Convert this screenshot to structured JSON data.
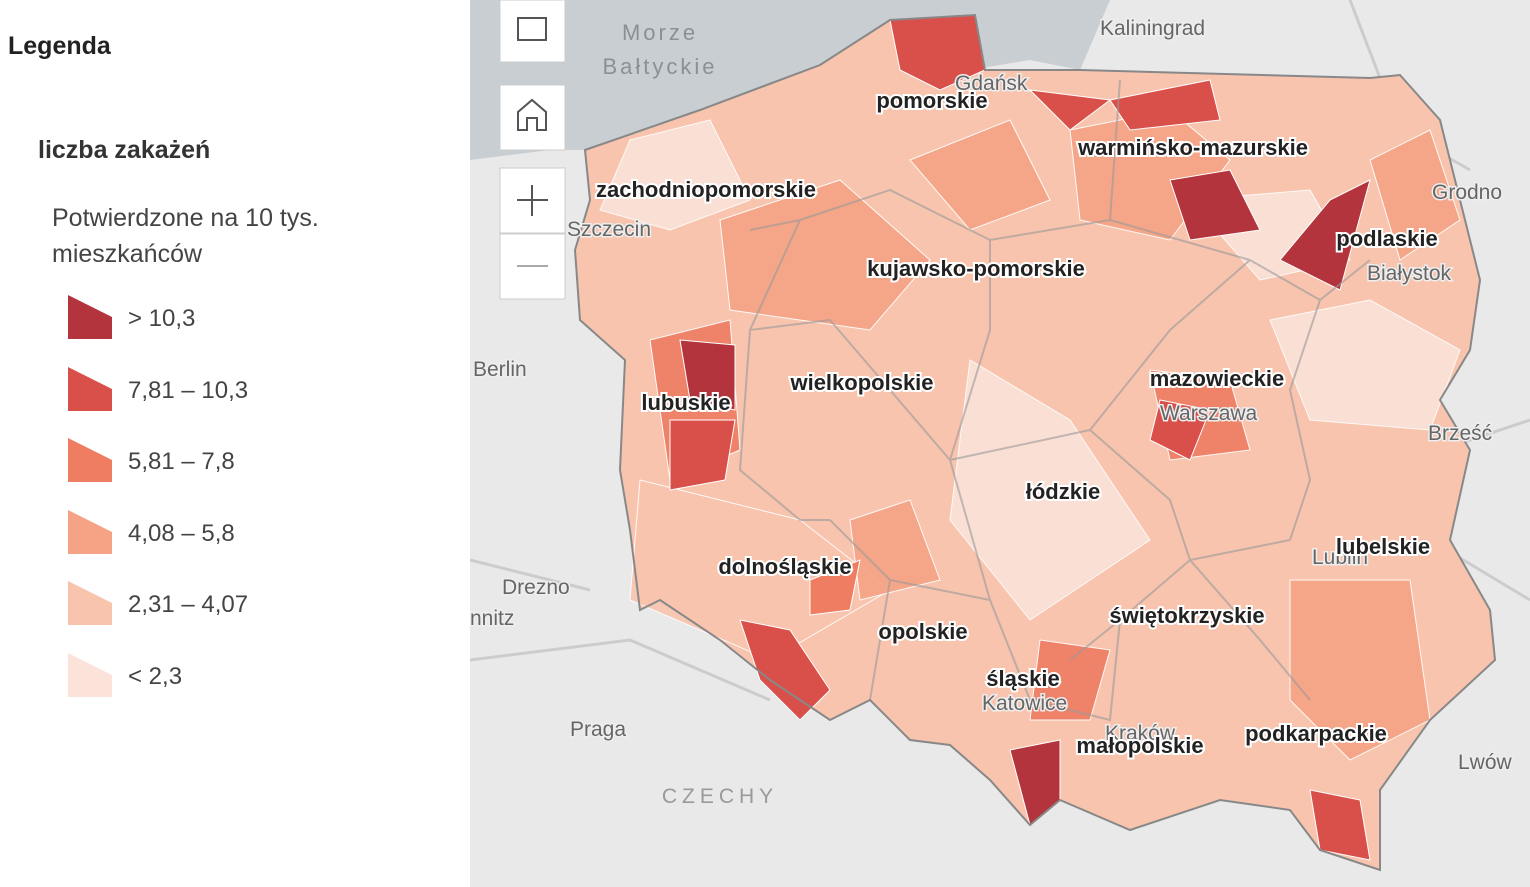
{
  "legend": {
    "title": "Legenda",
    "layer": "liczba zakażeń",
    "field": "Potwierdzone na 10 tys. mieszkańców",
    "classes": [
      {
        "label": "> 10,3",
        "color": "#b3343d"
      },
      {
        "label": "7,81 – 10,3",
        "color": "#d9504b"
      },
      {
        "label": "5,81 – 7,8",
        "color": "#ef7d62"
      },
      {
        "label": "4,08 – 5,8",
        "color": "#f5a384"
      },
      {
        "label": "2,31 – 4,07",
        "color": "#f8c4ae"
      },
      {
        "label": "< 2,3",
        "color": "#fbe3da"
      }
    ]
  },
  "map": {
    "sea": "Morze Bałtyckie",
    "country": "CZECHY",
    "cities": [
      "Kaliningrad",
      "Grodno",
      "Szczecin",
      "Berlin",
      "Białystok",
      "Warszawa",
      "Brześć",
      "Drezno",
      "nnitz",
      "Lublin",
      "Praga",
      "Katowice",
      "Kraków",
      "Lwów",
      "Gdańsk"
    ],
    "regions": [
      "pomorskie",
      "warmińsko-mazurskie",
      "zachodniopomorskie",
      "podlaskie",
      "kujawsko-pomorskie",
      "wielkopolskie",
      "mazowieckie",
      "lubuskie",
      "łódzkie",
      "lubelskie",
      "dolnośląskie",
      "świętokrzyskie",
      "opolskie",
      "śląskie",
      "małopolskie",
      "podkarpackie"
    ]
  }
}
